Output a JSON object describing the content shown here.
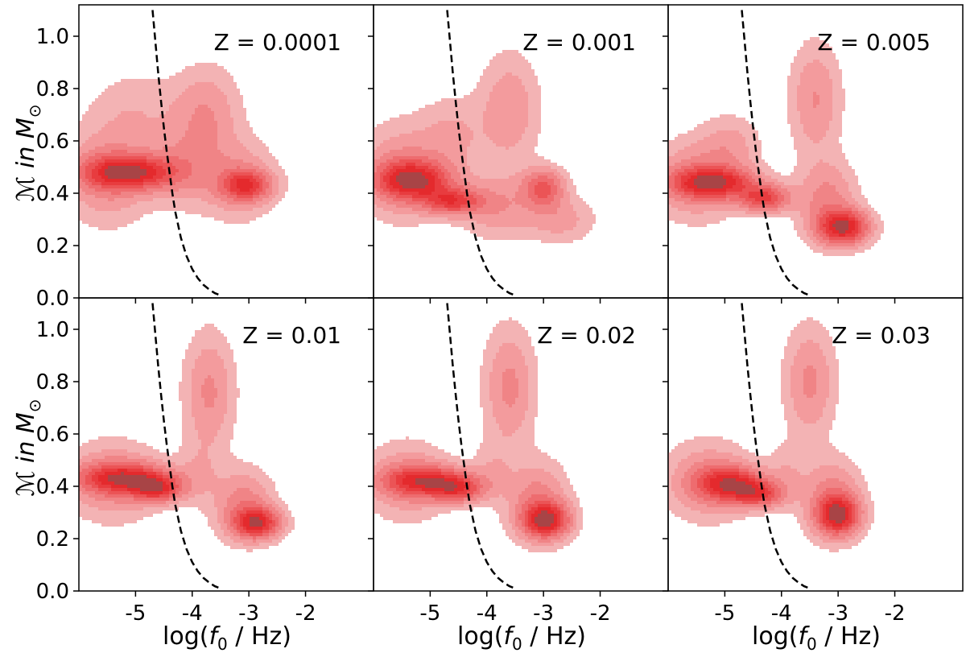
{
  "figure": {
    "y_axis_label_prefix": "ℳ in ",
    "y_axis_label_unit": "M",
    "y_axis_label_unit_sub": "⊙",
    "x_axis_label_prefix": "log(",
    "x_axis_label_var": "f",
    "x_axis_label_sub": "0",
    "x_axis_label_suffix": " / Hz)"
  },
  "colors": {
    "contour_levels": [
      "#f3b3b4",
      "#f39b9d",
      "#f08486",
      "#ee6c6f",
      "#eb5456",
      "#e83c3f",
      "#e42a2d",
      "#a84446"
    ],
    "curve": "#000000",
    "frame": "#000000"
  },
  "chart_data": {
    "type": "contour",
    "layout": "2x3 grid, shared axes",
    "xlabel": "log(f0 / Hz)",
    "ylabel": "ℳ in M⊙",
    "xlim": [
      -6.0,
      -0.8
    ],
    "ylim": [
      0.0,
      1.12
    ],
    "xticks": [
      -5,
      -4,
      -3,
      -2
    ],
    "xtick_labels": [
      "-5",
      "-4",
      "-3",
      "-2"
    ],
    "yticks": [
      0.0,
      0.2,
      0.4,
      0.6,
      0.8,
      1.0
    ],
    "ytick_labels": [
      "0.0",
      "0.2",
      "0.4",
      "0.6",
      "0.8",
      "1.0"
    ],
    "sensitivity_curve": {
      "style": "dashed",
      "x": [
        -4.7,
        -4.65,
        -4.6,
        -4.55,
        -4.5,
        -4.45,
        -4.4,
        -4.35,
        -4.3,
        -4.2,
        -4.1,
        -4.0,
        -3.9,
        -3.8,
        -3.7,
        -3.6,
        -3.5
      ],
      "y": [
        1.1,
        0.98,
        0.86,
        0.75,
        0.65,
        0.56,
        0.48,
        0.4,
        0.33,
        0.23,
        0.16,
        0.11,
        0.075,
        0.05,
        0.032,
        0.018,
        0.01
      ]
    },
    "panels": [
      {
        "title": "Z = 0.0001",
        "density_components": [
          {
            "x": -5.1,
            "y": 0.48,
            "sx": 0.55,
            "sy": 0.045,
            "w": 1.0
          },
          {
            "x": -5.5,
            "y": 0.47,
            "sx": 0.5,
            "sy": 0.12,
            "w": 0.35
          },
          {
            "x": -5.0,
            "y": 0.72,
            "sx": 0.55,
            "sy": 0.1,
            "w": 0.15
          },
          {
            "x": -3.75,
            "y": 0.7,
            "sx": 0.4,
            "sy": 0.12,
            "w": 0.3
          },
          {
            "x": -3.05,
            "y": 0.43,
            "sx": 0.3,
            "sy": 0.04,
            "w": 0.75
          },
          {
            "x": -3.2,
            "y": 0.45,
            "sx": 0.45,
            "sy": 0.1,
            "w": 0.3
          },
          {
            "x": -4.2,
            "y": 0.5,
            "sx": 0.4,
            "sy": 0.1,
            "w": 0.25
          }
        ]
      },
      {
        "title": "Z = 0.001",
        "density_components": [
          {
            "x": -5.3,
            "y": 0.45,
            "sx": 0.45,
            "sy": 0.05,
            "w": 1.0
          },
          {
            "x": -4.6,
            "y": 0.37,
            "sx": 0.35,
            "sy": 0.035,
            "w": 0.8
          },
          {
            "x": -5.5,
            "y": 0.48,
            "sx": 0.5,
            "sy": 0.12,
            "w": 0.35
          },
          {
            "x": -3.0,
            "y": 0.42,
            "sx": 0.25,
            "sy": 0.05,
            "w": 0.65
          },
          {
            "x": -3.6,
            "y": 0.72,
            "sx": 0.35,
            "sy": 0.14,
            "w": 0.3
          },
          {
            "x": -4.6,
            "y": 0.62,
            "sx": 0.4,
            "sy": 0.1,
            "w": 0.2
          },
          {
            "x": -2.7,
            "y": 0.3,
            "sx": 0.4,
            "sy": 0.06,
            "w": 0.25
          },
          {
            "x": -3.8,
            "y": 0.35,
            "sx": 0.45,
            "sy": 0.08,
            "w": 0.3
          }
        ]
      },
      {
        "title": "Z = 0.005",
        "density_components": [
          {
            "x": -5.2,
            "y": 0.44,
            "sx": 0.5,
            "sy": 0.04,
            "w": 0.9
          },
          {
            "x": -4.3,
            "y": 0.38,
            "sx": 0.3,
            "sy": 0.035,
            "w": 0.75
          },
          {
            "x": -5.5,
            "y": 0.45,
            "sx": 0.5,
            "sy": 0.1,
            "w": 0.35
          },
          {
            "x": -2.9,
            "y": 0.27,
            "sx": 0.3,
            "sy": 0.045,
            "w": 1.0
          },
          {
            "x": -3.2,
            "y": 0.37,
            "sx": 0.35,
            "sy": 0.1,
            "w": 0.35
          },
          {
            "x": -3.4,
            "y": 0.76,
            "sx": 0.3,
            "sy": 0.14,
            "w": 0.3
          },
          {
            "x": -4.9,
            "y": 0.58,
            "sx": 0.35,
            "sy": 0.08,
            "w": 0.2
          }
        ]
      },
      {
        "title": "Z = 0.01",
        "density_components": [
          {
            "x": -5.2,
            "y": 0.43,
            "sx": 0.55,
            "sy": 0.04,
            "w": 0.9
          },
          {
            "x": -4.6,
            "y": 0.39,
            "sx": 0.3,
            "sy": 0.035,
            "w": 0.8
          },
          {
            "x": -5.4,
            "y": 0.42,
            "sx": 0.55,
            "sy": 0.1,
            "w": 0.35
          },
          {
            "x": -2.85,
            "y": 0.26,
            "sx": 0.28,
            "sy": 0.04,
            "w": 1.0
          },
          {
            "x": -3.1,
            "y": 0.33,
            "sx": 0.35,
            "sy": 0.09,
            "w": 0.4
          },
          {
            "x": -3.7,
            "y": 0.76,
            "sx": 0.3,
            "sy": 0.15,
            "w": 0.35
          },
          {
            "x": -3.9,
            "y": 0.45,
            "sx": 0.25,
            "sy": 0.08,
            "w": 0.15
          }
        ]
      },
      {
        "title": "Z = 0.02",
        "density_components": [
          {
            "x": -5.1,
            "y": 0.42,
            "sx": 0.5,
            "sy": 0.04,
            "w": 0.85
          },
          {
            "x": -4.5,
            "y": 0.39,
            "sx": 0.3,
            "sy": 0.035,
            "w": 0.7
          },
          {
            "x": -5.4,
            "y": 0.42,
            "sx": 0.5,
            "sy": 0.1,
            "w": 0.3
          },
          {
            "x": -2.95,
            "y": 0.27,
            "sx": 0.28,
            "sy": 0.045,
            "w": 1.0
          },
          {
            "x": -3.1,
            "y": 0.34,
            "sx": 0.35,
            "sy": 0.1,
            "w": 0.4
          },
          {
            "x": -3.6,
            "y": 0.78,
            "sx": 0.3,
            "sy": 0.15,
            "w": 0.35
          },
          {
            "x": -3.9,
            "y": 0.45,
            "sx": 0.25,
            "sy": 0.08,
            "w": 0.15
          }
        ]
      },
      {
        "title": "Z = 0.03",
        "density_components": [
          {
            "x": -4.9,
            "y": 0.41,
            "sx": 0.4,
            "sy": 0.045,
            "w": 0.9
          },
          {
            "x": -4.4,
            "y": 0.37,
            "sx": 0.3,
            "sy": 0.035,
            "w": 0.7
          },
          {
            "x": -5.3,
            "y": 0.42,
            "sx": 0.5,
            "sy": 0.1,
            "w": 0.35
          },
          {
            "x": -3.0,
            "y": 0.29,
            "sx": 0.25,
            "sy": 0.05,
            "w": 1.0
          },
          {
            "x": -3.1,
            "y": 0.35,
            "sx": 0.35,
            "sy": 0.1,
            "w": 0.4
          },
          {
            "x": -3.5,
            "y": 0.8,
            "sx": 0.3,
            "sy": 0.14,
            "w": 0.35
          },
          {
            "x": -3.9,
            "y": 0.45,
            "sx": 0.25,
            "sy": 0.08,
            "w": 0.15
          }
        ]
      }
    ]
  }
}
